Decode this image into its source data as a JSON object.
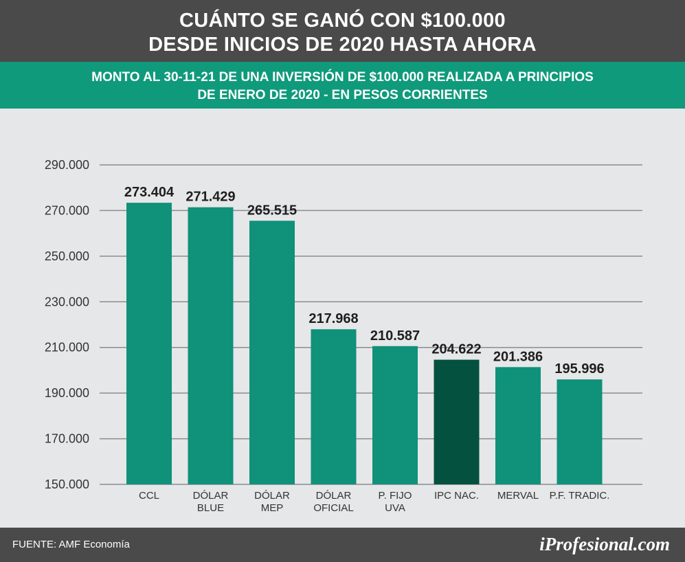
{
  "header": {
    "title_line1": "CUÁNTO SE GANÓ CON $100.000",
    "title_line2": "DESDE INICIOS DE 2020 HASTA AHORA",
    "subtitle_line1": "MONTO AL 30-11-21 DE UNA INVERSIÓN DE $100.000 REALIZADA A PRINCIPIOS",
    "subtitle_line2": "DE ENERO DE 2020 - EN PESOS CORRIENTES"
  },
  "footer": {
    "source": "FUENTE: AMF Economía",
    "brand": "iProfesional.com"
  },
  "colors": {
    "bar": "#0f917a",
    "bar_highlight": "#05513f",
    "grid": "#8a8c8e",
    "axis_text": "#333333",
    "value_text": "#1e1e1e"
  },
  "chart_data": {
    "type": "bar",
    "categories": [
      [
        "CCL"
      ],
      [
        "DÓLAR",
        "BLUE"
      ],
      [
        "DÓLAR",
        "MEP"
      ],
      [
        "DÓLAR",
        "OFICIAL"
      ],
      [
        "P. FIJO",
        "UVA"
      ],
      [
        "IPC NAC."
      ],
      [
        "MERVAL"
      ],
      [
        "P.F. TRADIC."
      ]
    ],
    "values": [
      273404,
      271429,
      265515,
      217968,
      210587,
      204622,
      201386,
      195996
    ],
    "value_labels": [
      "273.404",
      "271.429",
      "265.515",
      "217.968",
      "210.587",
      "204.622",
      "201.386",
      "195.996"
    ],
    "highlight_index": 5,
    "ylim": [
      150000,
      290000
    ],
    "yticks": [
      150000,
      170000,
      190000,
      210000,
      230000,
      250000,
      270000,
      290000
    ],
    "ytick_labels": [
      "150.000",
      "170.000",
      "190.000",
      "210.000",
      "230.000",
      "250.000",
      "270.000",
      "290.000"
    ],
    "grid": true
  }
}
